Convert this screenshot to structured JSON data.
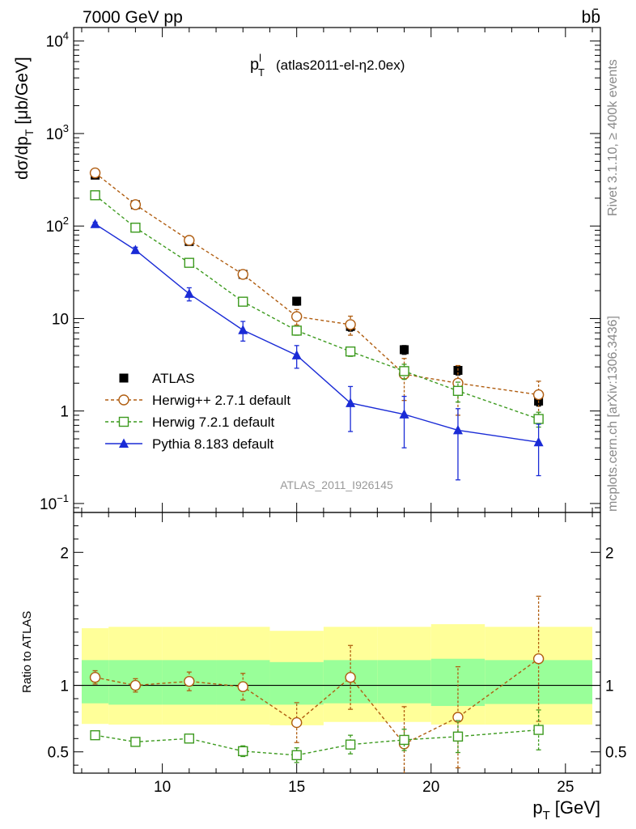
{
  "header": {
    "left": "7000 GeV pp",
    "right": "bb̄"
  },
  "side_labels": {
    "rivet": "Rivet 3.1.10, ≥ 400k events",
    "mcplots": "mcplots.cern.ch [arXiv:1306.3436]"
  },
  "chart_data": [
    {
      "type": "scatter",
      "panel": "main",
      "title_main": "p",
      "title_sup": "l",
      "title_sub": "T",
      "subtitle": "(atlas2011-el-η2.0ex)",
      "ylabel_main": "dσ/dp",
      "ylabel_sub": "T",
      "ylabel_units": "[μb/GeV]",
      "yscale": "log",
      "ylim": [
        0.08,
        14000
      ],
      "xlim": [
        6.7,
        26.3
      ],
      "y_ticks": [
        {
          "v": 10000,
          "base": "10",
          "exp": "4"
        },
        {
          "v": 1000,
          "base": "10",
          "exp": "3"
        },
        {
          "v": 100,
          "base": "10",
          "exp": "2"
        },
        {
          "v": 10,
          "base": "10",
          "exp": ""
        },
        {
          "v": 1,
          "base": "1",
          "exp": ""
        },
        {
          "v": 0.1,
          "base": "10",
          "exp": "−1"
        }
      ],
      "analysis_label": "ATLAS_2011_I926145",
      "x": [
        7.5,
        9,
        11,
        13,
        15,
        17,
        19,
        21,
        24
      ],
      "x_edges": [
        7,
        8,
        10,
        12,
        14,
        16,
        18,
        20,
        22,
        26
      ],
      "series": [
        {
          "name": "ATLAS",
          "color": "#000000",
          "marker": "filled-square",
          "values": [
            355,
            170,
            68,
            30,
            15.4,
            8.2,
            4.6,
            2.75,
            1.28
          ],
          "err": [
            30,
            15,
            6,
            3,
            1.5,
            0.9,
            0.5,
            0.3,
            0.15
          ]
        },
        {
          "name": "Herwig++ 2.7.1 default",
          "color": "#b05d10",
          "marker": "open-circle",
          "dash": "4,3",
          "values": [
            375,
            170,
            70,
            30,
            10.5,
            8.6,
            2.5,
            2.0,
            1.5
          ],
          "err": [
            20,
            10,
            5,
            3,
            2.0,
            2.0,
            1.2,
            1.1,
            0.6
          ]
        },
        {
          "name": "Herwig 7.2.1 default",
          "color": "#3c9a1e",
          "marker": "open-square",
          "dash": "4,3",
          "values": [
            215,
            96,
            40,
            15.2,
            7.4,
            4.4,
            2.7,
            1.65,
            0.82
          ],
          "err": [
            10,
            5,
            2.5,
            1.2,
            0.8,
            0.5,
            0.5,
            0.4,
            0.15
          ]
        },
        {
          "name": "Pythia 8.183 default",
          "color": "#1a2bd6",
          "marker": "filled-triangle",
          "values": [
            105,
            55,
            18.5,
            7.5,
            4.0,
            1.22,
            0.92,
            0.62,
            0.46
          ],
          "err": [
            5,
            4,
            3,
            1.8,
            1.1,
            0.62,
            0.52,
            0.44,
            0.26
          ]
        }
      ]
    },
    {
      "type": "scatter",
      "panel": "ratio",
      "ylabel": "Ratio to ATLAS",
      "ylim": [
        0.34,
        2.3
      ],
      "xlim": [
        6.7,
        26.3
      ],
      "y_ticks": [
        0.5,
        1,
        2
      ],
      "x_ticks": [
        10,
        15,
        20,
        25
      ],
      "xlabel_main": "p",
      "xlabel_sub": "T",
      "xlabel_units": "[GeV]",
      "x": [
        7.5,
        9,
        11,
        13,
        15,
        17,
        19,
        21,
        24
      ],
      "x_edges": [
        7,
        8,
        10,
        12,
        14,
        16,
        18,
        20,
        22,
        26
      ],
      "bands": {
        "yellow_color": "#ffff99",
        "green_color": "#99ff99",
        "yellow_lo": [
          0.71,
          0.705,
          0.705,
          0.705,
          0.7,
          0.725,
          0.725,
          0.705,
          0.705
        ],
        "yellow_hi": [
          1.43,
          1.44,
          1.44,
          1.44,
          1.41,
          1.44,
          1.44,
          1.46,
          1.44
        ],
        "green_lo": [
          0.865,
          0.855,
          0.855,
          0.855,
          0.855,
          0.865,
          0.865,
          0.845,
          0.86
        ],
        "green_hi": [
          1.19,
          1.19,
          1.19,
          1.19,
          1.175,
          1.19,
          1.19,
          1.2,
          1.19
        ]
      },
      "series": [
        {
          "name": "Herwig++ 2.7.1 default",
          "color": "#b05d10",
          "marker": "open-circle",
          "dash": "4,3",
          "values": [
            1.06,
            1.0,
            1.03,
            0.99,
            0.72,
            1.06,
            0.56,
            0.76,
            1.2
          ],
          "err": [
            0.05,
            0.05,
            0.07,
            0.1,
            0.15,
            0.24,
            0.28,
            0.38,
            0.47
          ]
        },
        {
          "name": "Herwig 7.2.1 default",
          "color": "#3c9a1e",
          "marker": "open-square",
          "dash": "4,3",
          "values": [
            0.625,
            0.575,
            0.6,
            0.505,
            0.475,
            0.555,
            0.59,
            0.615,
            0.665
          ],
          "err": [
            0.02,
            0.02,
            0.03,
            0.04,
            0.055,
            0.07,
            0.08,
            0.12,
            0.15
          ]
        }
      ]
    }
  ]
}
